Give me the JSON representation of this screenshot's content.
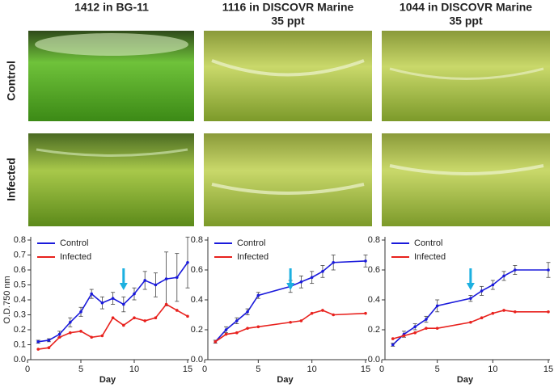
{
  "header": {
    "columns": [
      [
        "1412 in BG-11"
      ],
      [
        "1116 in DISCOVR Marine",
        "35 ppt"
      ],
      [
        "1044 in DISCOVR Marine",
        "35 ppt"
      ]
    ]
  },
  "row_labels": [
    "Control",
    "Infected"
  ],
  "chart_data": [
    {
      "type": "line",
      "xlabel": "Day",
      "ylabel": "O.D.750 nm",
      "x": [
        1,
        2,
        3,
        4,
        5,
        6,
        7,
        8,
        9,
        10,
        11,
        12,
        13,
        14,
        15
      ],
      "series": [
        {
          "name": "Control",
          "color": "#1a1adb",
          "values": [
            0.12,
            0.13,
            0.17,
            0.25,
            0.32,
            0.44,
            0.38,
            0.41,
            0.37,
            0.44,
            0.53,
            0.5,
            0.54,
            0.55,
            0.65
          ],
          "errors": [
            0.01,
            0.01,
            0.02,
            0.03,
            0.03,
            0.03,
            0.04,
            0.04,
            0.05,
            0.04,
            0.06,
            0.08,
            0.18,
            0.16,
            0.17
          ]
        },
        {
          "name": "Infected",
          "color": "#e8211d",
          "values": [
            0.07,
            0.08,
            0.15,
            0.18,
            0.19,
            0.15,
            0.16,
            0.28,
            0.23,
            0.28,
            0.26,
            0.28,
            0.37,
            0.33,
            0.29
          ]
        }
      ],
      "arrow_x": 9,
      "arrow_color": "#1cb0e0",
      "xlim": [
        0,
        15
      ],
      "xticks": [
        0,
        5,
        10,
        15
      ],
      "ylim": [
        0,
        0.8
      ],
      "yticks": [
        {
          "value": 0,
          "label": "0.0"
        },
        0.1,
        0.2,
        0.3,
        0.4,
        0.5,
        0.6,
        0.7,
        0.8
      ]
    },
    {
      "type": "line",
      "xlabel": "Day",
      "x": [
        1,
        2,
        3,
        4,
        5,
        8,
        9,
        10,
        11,
        12,
        15
      ],
      "series": [
        {
          "name": "Control",
          "color": "#1a1adb",
          "values": [
            0.12,
            0.2,
            0.26,
            0.32,
            0.43,
            0.49,
            0.52,
            0.55,
            0.59,
            0.65,
            0.66
          ],
          "errors": [
            0.01,
            0.02,
            0.02,
            0.02,
            0.02,
            0.04,
            0.04,
            0.04,
            0.04,
            0.05,
            0.04
          ]
        },
        {
          "name": "Infected",
          "color": "#e8211d",
          "values": [
            0.12,
            0.17,
            0.18,
            0.21,
            0.22,
            0.25,
            0.26,
            0.31,
            0.33,
            0.3,
            0.31
          ]
        }
      ],
      "arrow_x": 8,
      "arrow_color": "#1cb0e0",
      "xlim": [
        0,
        15
      ],
      "xticks": [
        0,
        5,
        10,
        15
      ],
      "ylim": [
        0,
        0.8
      ],
      "yticks": [
        {
          "value": 0,
          "label": "0.0"
        },
        0.2,
        0.4,
        0.6,
        0.8
      ]
    },
    {
      "type": "line",
      "xlabel": "Day",
      "x": [
        1,
        2,
        3,
        4,
        5,
        8,
        9,
        10,
        11,
        12,
        15
      ],
      "series": [
        {
          "name": "Control",
          "color": "#1a1adb",
          "values": [
            0.1,
            0.17,
            0.22,
            0.27,
            0.36,
            0.41,
            0.46,
            0.5,
            0.56,
            0.6,
            0.6
          ],
          "errors": [
            0.01,
            0.02,
            0.02,
            0.02,
            0.04,
            0.02,
            0.03,
            0.03,
            0.03,
            0.03,
            0.05
          ]
        },
        {
          "name": "Infected",
          "color": "#e8211d",
          "values": [
            0.14,
            0.16,
            0.18,
            0.21,
            0.21,
            0.25,
            0.28,
            0.31,
            0.33,
            0.32,
            0.32
          ]
        }
      ],
      "arrow_x": 8,
      "arrow_color": "#1cb0e0",
      "xlim": [
        0,
        15
      ],
      "xticks": [
        0,
        5,
        10,
        15
      ],
      "ylim": [
        0,
        0.8
      ],
      "yticks": [
        {
          "value": 0,
          "label": "0.0"
        },
        0.2,
        0.4,
        0.6,
        0.8
      ]
    }
  ]
}
